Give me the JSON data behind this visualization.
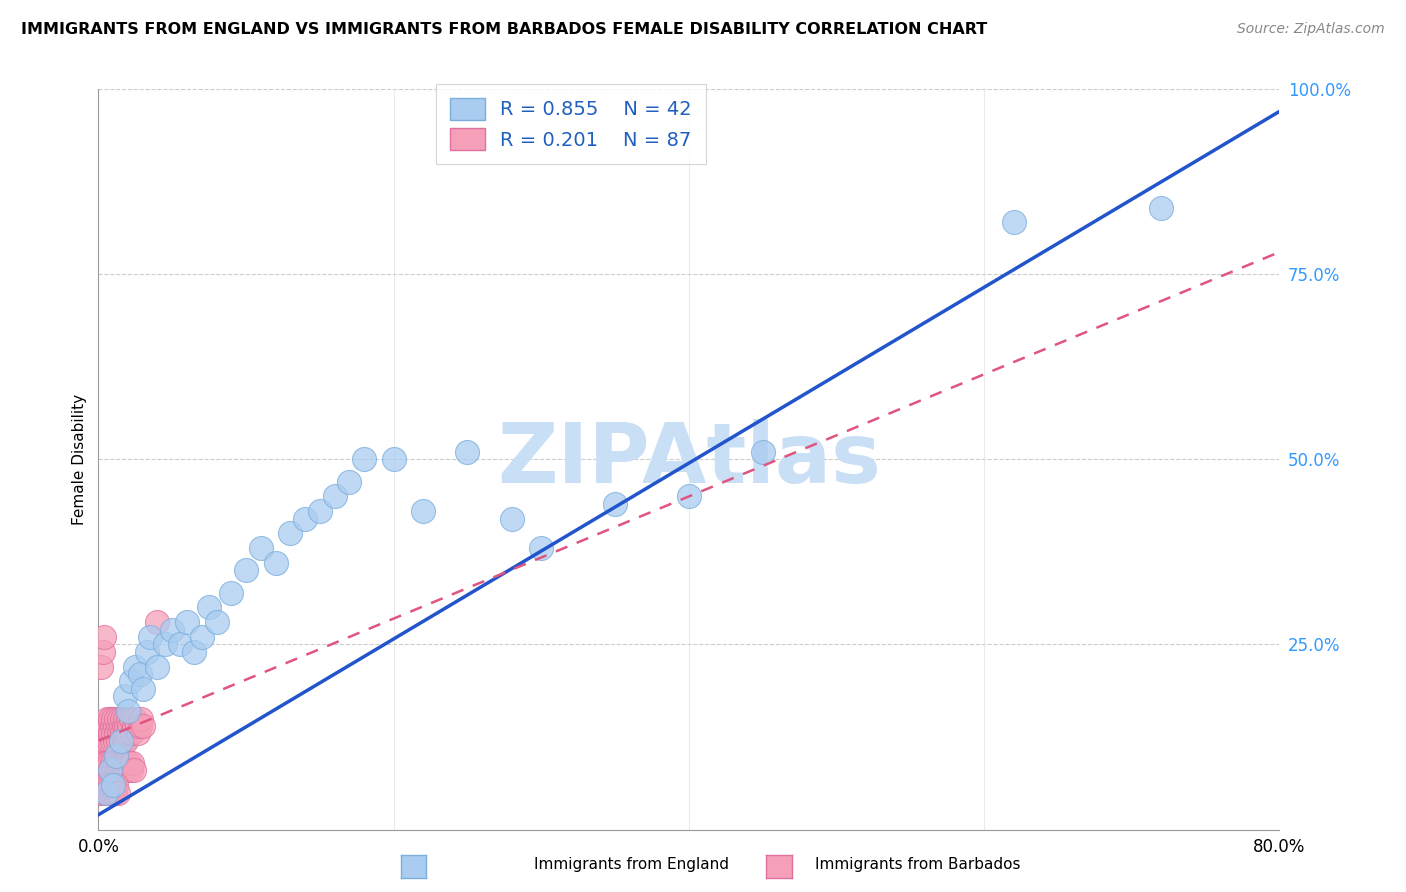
{
  "title": "IMMIGRANTS FROM ENGLAND VS IMMIGRANTS FROM BARBADOS FEMALE DISABILITY CORRELATION CHART",
  "source": "Source: ZipAtlas.com",
  "ylabel": "Female Disability",
  "x_min": 0.0,
  "x_max": 0.8,
  "y_min": 0.0,
  "y_max": 1.0,
  "x_ticks": [
    0.0,
    0.2,
    0.4,
    0.6,
    0.8
  ],
  "x_tick_labels": [
    "0.0%",
    "",
    "",
    "",
    "80.0%"
  ],
  "y_ticks": [
    0.0,
    0.25,
    0.5,
    0.75,
    1.0
  ],
  "y_tick_labels": [
    "",
    "25.0%",
    "50.0%",
    "75.0%",
    "100.0%"
  ],
  "england_color": "#aaccf0",
  "england_edge_color": "#7aaedd",
  "barbados_color": "#f5a0b8",
  "barbados_edge_color": "#e070a0",
  "england_R": 0.855,
  "england_N": 42,
  "barbados_R": 0.201,
  "barbados_N": 87,
  "england_line_color": "#2255cc",
  "barbados_line_color": "#e05580",
  "legend_R_color": "#2060c0",
  "watermark": "ZIPAtlas",
  "watermark_color": "#c8dff5",
  "eng_line_x0": 0.0,
  "eng_line_y0": 0.02,
  "eng_line_x1": 0.8,
  "eng_line_y1": 0.97,
  "bar_line_x0": 0.0,
  "bar_line_y0": 0.12,
  "bar_line_x1": 0.8,
  "bar_line_y1": 0.78,
  "england_x": [
    0.005,
    0.008,
    0.01,
    0.012,
    0.015,
    0.018,
    0.02,
    0.022,
    0.025,
    0.028,
    0.03,
    0.033,
    0.035,
    0.04,
    0.045,
    0.05,
    0.055,
    0.06,
    0.065,
    0.07,
    0.075,
    0.08,
    0.09,
    0.1,
    0.11,
    0.12,
    0.13,
    0.14,
    0.15,
    0.16,
    0.17,
    0.18,
    0.2,
    0.22,
    0.25,
    0.28,
    0.3,
    0.35,
    0.4,
    0.45,
    0.62,
    0.72
  ],
  "england_y": [
    0.05,
    0.08,
    0.06,
    0.1,
    0.12,
    0.18,
    0.16,
    0.2,
    0.22,
    0.21,
    0.19,
    0.24,
    0.26,
    0.22,
    0.25,
    0.27,
    0.25,
    0.28,
    0.24,
    0.26,
    0.3,
    0.28,
    0.32,
    0.35,
    0.38,
    0.36,
    0.4,
    0.42,
    0.43,
    0.45,
    0.47,
    0.5,
    0.5,
    0.43,
    0.51,
    0.42,
    0.38,
    0.44,
    0.45,
    0.51,
    0.82,
    0.84
  ],
  "barbados_x": [
    0.002,
    0.003,
    0.003,
    0.004,
    0.004,
    0.005,
    0.005,
    0.006,
    0.006,
    0.007,
    0.007,
    0.008,
    0.008,
    0.009,
    0.009,
    0.01,
    0.01,
    0.011,
    0.011,
    0.012,
    0.012,
    0.013,
    0.013,
    0.014,
    0.014,
    0.015,
    0.015,
    0.016,
    0.016,
    0.017,
    0.017,
    0.018,
    0.018,
    0.019,
    0.019,
    0.02,
    0.02,
    0.021,
    0.022,
    0.023,
    0.024,
    0.025,
    0.026,
    0.027,
    0.028,
    0.029,
    0.03,
    0.002,
    0.003,
    0.004,
    0.005,
    0.006,
    0.007,
    0.008,
    0.009,
    0.01,
    0.011,
    0.012,
    0.013,
    0.014,
    0.015,
    0.016,
    0.017,
    0.018,
    0.019,
    0.02,
    0.021,
    0.022,
    0.023,
    0.024,
    0.001,
    0.002,
    0.003,
    0.004,
    0.005,
    0.006,
    0.007,
    0.008,
    0.009,
    0.01,
    0.011,
    0.012,
    0.013,
    0.04,
    0.002,
    0.003,
    0.004
  ],
  "barbados_y": [
    0.12,
    0.14,
    0.1,
    0.13,
    0.11,
    0.14,
    0.12,
    0.15,
    0.13,
    0.14,
    0.12,
    0.15,
    0.13,
    0.14,
    0.12,
    0.15,
    0.13,
    0.14,
    0.12,
    0.15,
    0.13,
    0.14,
    0.12,
    0.15,
    0.13,
    0.14,
    0.12,
    0.15,
    0.13,
    0.14,
    0.12,
    0.15,
    0.13,
    0.14,
    0.12,
    0.15,
    0.13,
    0.14,
    0.15,
    0.13,
    0.14,
    0.15,
    0.14,
    0.13,
    0.14,
    0.15,
    0.14,
    0.08,
    0.09,
    0.08,
    0.09,
    0.08,
    0.09,
    0.08,
    0.09,
    0.08,
    0.09,
    0.08,
    0.09,
    0.08,
    0.09,
    0.08,
    0.09,
    0.08,
    0.09,
    0.08,
    0.09,
    0.08,
    0.09,
    0.08,
    0.05,
    0.06,
    0.05,
    0.06,
    0.05,
    0.06,
    0.05,
    0.06,
    0.05,
    0.06,
    0.05,
    0.06,
    0.05,
    0.28,
    0.22,
    0.24,
    0.26
  ]
}
